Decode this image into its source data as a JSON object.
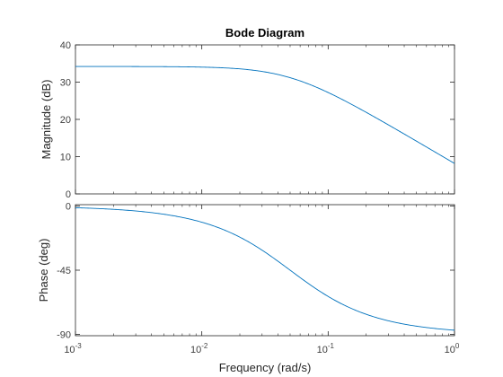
{
  "chart_data": {
    "type": "line",
    "title": "Bode Diagram",
    "xlabel": "Frequency  (rad/s)",
    "x_scale": "log",
    "xlim": [
      0.001,
      1
    ],
    "x_ticks": [
      0.001,
      0.01,
      0.1,
      1
    ],
    "x_tick_labels": [
      {
        "base": "10",
        "exp": "-3"
      },
      {
        "base": "10",
        "exp": "-2"
      },
      {
        "base": "10",
        "exp": "-1"
      },
      {
        "base": "10",
        "exp": "0"
      }
    ],
    "grid": false,
    "line_color": "#0072BD",
    "axes_color": "#262626",
    "magnitude": {
      "ylabel": "Magnitude (dB)",
      "ylim": [
        0,
        40
      ],
      "y_ticks": [
        0,
        10,
        20,
        30,
        40
      ],
      "y_tick_labels": [
        "0",
        "10",
        "20",
        "30",
        "40"
      ],
      "gain": 51.3,
      "corner_frequency": 0.05
    },
    "phase": {
      "ylabel": "Phase (deg)",
      "ylim": [
        -91,
        1
      ],
      "y_ticks": [
        0,
        -45,
        -90
      ],
      "y_tick_labels": [
        "0",
        "-45",
        "-90"
      ],
      "corner_frequency": 0.05
    }
  }
}
